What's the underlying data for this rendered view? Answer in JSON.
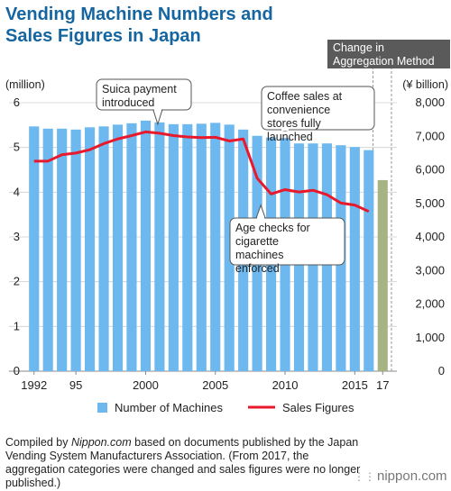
{
  "chart_data": {
    "type": "bar+line",
    "title": "Vending Machine Numbers and Sales Figures in Japan",
    "left_axis_unit": "(million)",
    "right_axis_unit": "(¥ billion)",
    "left_ticks": [
      "0",
      "1",
      "2",
      "3",
      "4",
      "5",
      "6"
    ],
    "left_ylim": [
      0,
      6
    ],
    "right_ticks": [
      "0",
      "1,000",
      "2,000",
      "3,000",
      "4,000",
      "5,000",
      "6,000",
      "7,000",
      "8,000"
    ],
    "right_ylim": [
      0,
      8000
    ],
    "x_tick_labels": [
      {
        "year": 1992,
        "label": "1992"
      },
      {
        "year": 1995,
        "label": "95"
      },
      {
        "year": 2000,
        "label": "2000"
      },
      {
        "year": 2005,
        "label": "2005"
      },
      {
        "year": 2010,
        "label": "2010"
      },
      {
        "year": 2015,
        "label": "2015"
      },
      {
        "year": 2017,
        "label": "17"
      }
    ],
    "years": [
      1992,
      1993,
      1994,
      1995,
      1996,
      1997,
      1998,
      1999,
      2000,
      2001,
      2002,
      2003,
      2004,
      2005,
      2006,
      2007,
      2008,
      2009,
      2010,
      2011,
      2012,
      2013,
      2014,
      2015,
      2016,
      2017
    ],
    "machines": [
      5.47,
      5.42,
      5.42,
      5.4,
      5.45,
      5.47,
      5.51,
      5.54,
      5.6,
      5.56,
      5.52,
      5.52,
      5.53,
      5.55,
      5.51,
      5.4,
      5.26,
      5.22,
      5.21,
      5.09,
      5.09,
      5.09,
      5.05,
      5.01,
      4.94,
      4.27
    ],
    "sales": [
      6260,
      6260,
      6450,
      6500,
      6600,
      6780,
      6920,
      7020,
      7130,
      7090,
      7020,
      6980,
      6960,
      6970,
      6860,
      6920,
      5750,
      5280,
      5410,
      5340,
      5390,
      5260,
      5010,
      4950,
      4760,
      null
    ],
    "legend": [
      {
        "name": "Number of Machines",
        "color": "#6db8ee"
      },
      {
        "name": "Sales Figures",
        "color": "#e8192c"
      }
    ],
    "change_box": {
      "label": "Change in Aggregation Method",
      "year": 2017,
      "color": "#5a5a5a",
      "bar_color": "#a7b383"
    },
    "annotations": [
      {
        "text": "Suica payment introduced",
        "year": 2001
      },
      {
        "text": "Coffee sales at convenience stores fully launched",
        "year": 2011
      },
      {
        "text": "Age checks for cigarette machines enforced",
        "year": 2008
      }
    ],
    "colors": {
      "bar": "#6db8ee",
      "line": "#e8192c",
      "title": "#1565a0"
    }
  },
  "footnote": {
    "pre": "Compiled by ",
    "source": "Nippon.com",
    "post": " based on documents published by the Japan Vending System Manufacturers Association. (From 2017, the aggregation categories were changed and sales figures were no longer published.)"
  },
  "logo": "nippon.com"
}
